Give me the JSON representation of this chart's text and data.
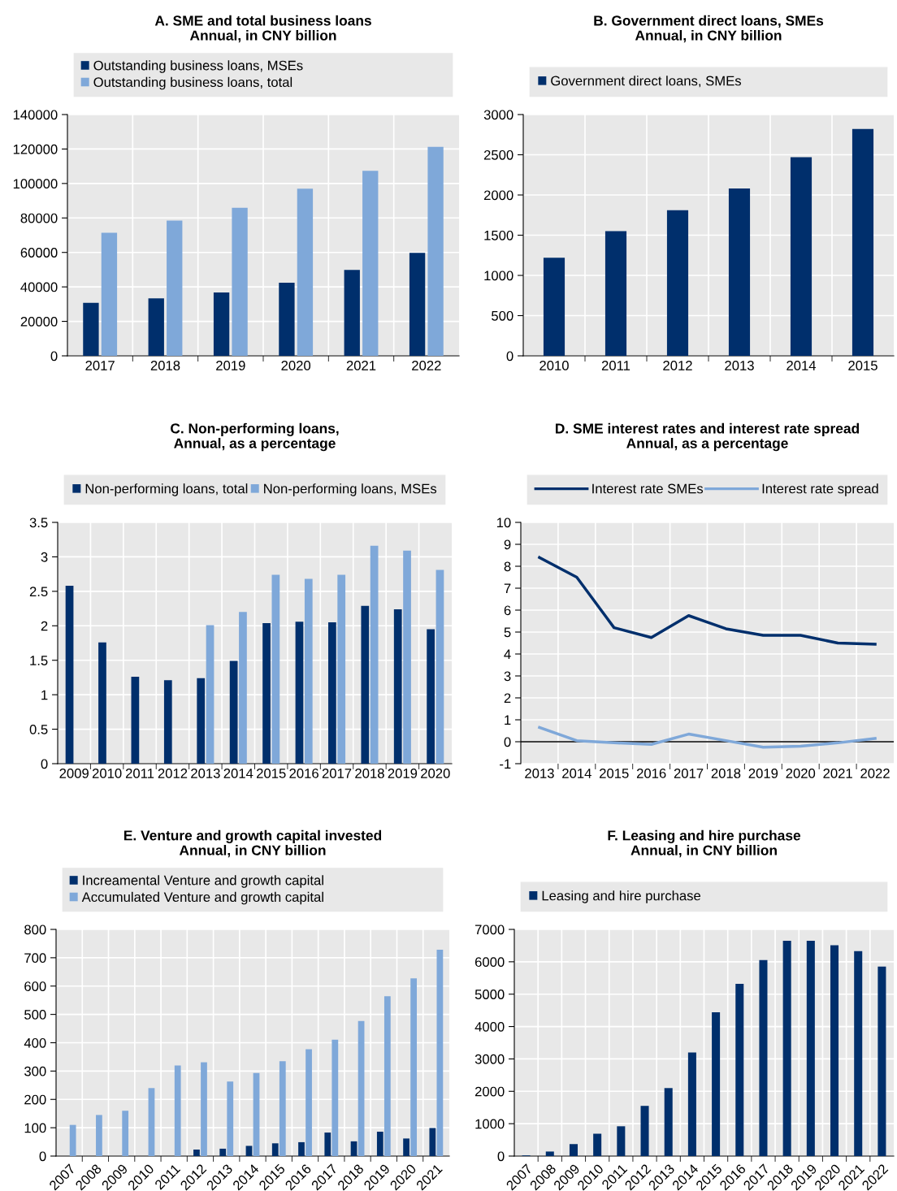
{
  "chart_data": [
    {
      "type": "bar",
      "title": "A. SME and total business loans",
      "subtitle": "Annual, in CNY billion",
      "categories": [
        "2017",
        "2018",
        "2019",
        "2020",
        "2021",
        "2022"
      ],
      "series": [
        {
          "name": "Outstanding business loans, MSEs",
          "color": "#002f6c",
          "values": [
            30800,
            33300,
            36800,
            42400,
            49900,
            59700
          ]
        },
        {
          "name": "Outstanding business loans, total",
          "color": "#7fa8d9",
          "values": [
            71400,
            78500,
            85900,
            97000,
            107400,
            121300
          ]
        }
      ],
      "ylim": [
        0,
        140000
      ],
      "yticks": [
        0,
        20000,
        40000,
        60000,
        80000,
        100000,
        120000,
        140000
      ],
      "grid": true,
      "legend": "top"
    },
    {
      "type": "bar",
      "title": "B. Government direct loans, SMEs",
      "subtitle": "Annual, in CNY billion",
      "categories": [
        "2010",
        "2011",
        "2012",
        "2013",
        "2014",
        "2015"
      ],
      "series": [
        {
          "name": "Government direct loans, SMEs",
          "color": "#002f6c",
          "values": [
            1220,
            1550,
            1810,
            2080,
            2470,
            2820
          ]
        }
      ],
      "ylim": [
        0,
        3000
      ],
      "yticks": [
        0,
        500,
        1000,
        1500,
        2000,
        2500,
        3000
      ],
      "grid": true,
      "legend": "top"
    },
    {
      "type": "bar",
      "title": "C. Non-performing loans,",
      "subtitle": "Annual, as a percentage",
      "categories": [
        "2009",
        "2010",
        "2011",
        "2012",
        "2013",
        "2014",
        "2015",
        "2016",
        "2017",
        "2018",
        "2019",
        "2020"
      ],
      "series": [
        {
          "name": "Non-performing loans, total",
          "color": "#002f6c",
          "values": [
            2.58,
            1.76,
            1.26,
            1.21,
            1.24,
            1.49,
            2.04,
            2.06,
            2.05,
            2.29,
            2.24,
            1.95
          ]
        },
        {
          "name": "Non-performing loans, MSEs",
          "color": "#7fa8d9",
          "values": [
            null,
            null,
            null,
            null,
            2.01,
            2.2,
            2.74,
            2.68,
            2.74,
            3.16,
            3.09,
            2.81
          ]
        }
      ],
      "ylim": [
        0,
        3.5
      ],
      "yticks": [
        0,
        0.5,
        1,
        1.5,
        2,
        2.5,
        3,
        3.5
      ],
      "grid": true,
      "legend": "top"
    },
    {
      "type": "line",
      "title": "D. SME interest rates and interest rate spread",
      "subtitle": "Annual, as a percentage",
      "categories": [
        "2013",
        "2014",
        "2015",
        "2016",
        "2017",
        "2018",
        "2019",
        "2020",
        "2021",
        "2022"
      ],
      "series": [
        {
          "name": "Interest rate SMEs",
          "color": "#002f6c",
          "values": [
            8.4,
            7.5,
            5.2,
            4.75,
            5.75,
            5.15,
            4.85,
            4.85,
            4.5,
            4.45
          ]
        },
        {
          "name": "Interest rate spread",
          "color": "#7fa8d9",
          "values": [
            0.65,
            0.05,
            -0.05,
            -0.12,
            0.35,
            0.05,
            -0.25,
            -0.2,
            -0.05,
            0.15
          ]
        }
      ],
      "ylim": [
        -1,
        10
      ],
      "yticks": [
        -1,
        0,
        1,
        2,
        3,
        4,
        5,
        6,
        7,
        8,
        9,
        10
      ],
      "grid": true,
      "legend": "top",
      "marker": "none",
      "line_style": "solid",
      "ref_lines": [
        {
          "axis": "y",
          "value": 0,
          "color": "#000000"
        }
      ]
    },
    {
      "type": "bar",
      "title": "E. Venture and growth capital invested",
      "subtitle": "Annual, in CNY billion",
      "categories": [
        "2007",
        "2008",
        "2009",
        "2010",
        "2011",
        "2012",
        "2013",
        "2014",
        "2015",
        "2016",
        "2017",
        "2018",
        "2019",
        "2020",
        "2021"
      ],
      "series": [
        {
          "name": "Increamental Venture and growth capital",
          "color": "#002f6c",
          "values": [
            null,
            null,
            null,
            null,
            null,
            23,
            26,
            36,
            45,
            49,
            83,
            52,
            86,
            62,
            99
          ]
        },
        {
          "name": "Accumulated Venture and growth capital",
          "color": "#7fa8d9",
          "values": [
            110,
            145,
            160,
            240,
            320,
            331,
            263,
            293,
            335,
            377,
            411,
            477,
            564,
            627,
            728
          ]
        }
      ],
      "ylim": [
        0,
        800
      ],
      "yticks": [
        0,
        100,
        200,
        300,
        400,
        500,
        600,
        700,
        800
      ],
      "grid": true,
      "legend": "top"
    },
    {
      "type": "bar",
      "title": "F. Leasing and hire purchase",
      "subtitle": "Annual, in CNY billion",
      "categories": [
        "2007",
        "2008",
        "2009",
        "2010",
        "2011",
        "2012",
        "2013",
        "2014",
        "2015",
        "2016",
        "2017",
        "2018",
        "2019",
        "2020",
        "2021",
        "2022"
      ],
      "series": [
        {
          "name": "Leasing and hire purchase",
          "color": "#002f6c",
          "values": [
            20,
            140,
            370,
            690,
            920,
            1550,
            2100,
            3200,
            4440,
            5320,
            6050,
            6650,
            6650,
            6510,
            6330,
            5850
          ]
        }
      ],
      "ylim": [
        0,
        7000
      ],
      "yticks": [
        0,
        1000,
        2000,
        3000,
        4000,
        5000,
        6000,
        7000
      ],
      "grid": true,
      "legend": "top"
    }
  ]
}
